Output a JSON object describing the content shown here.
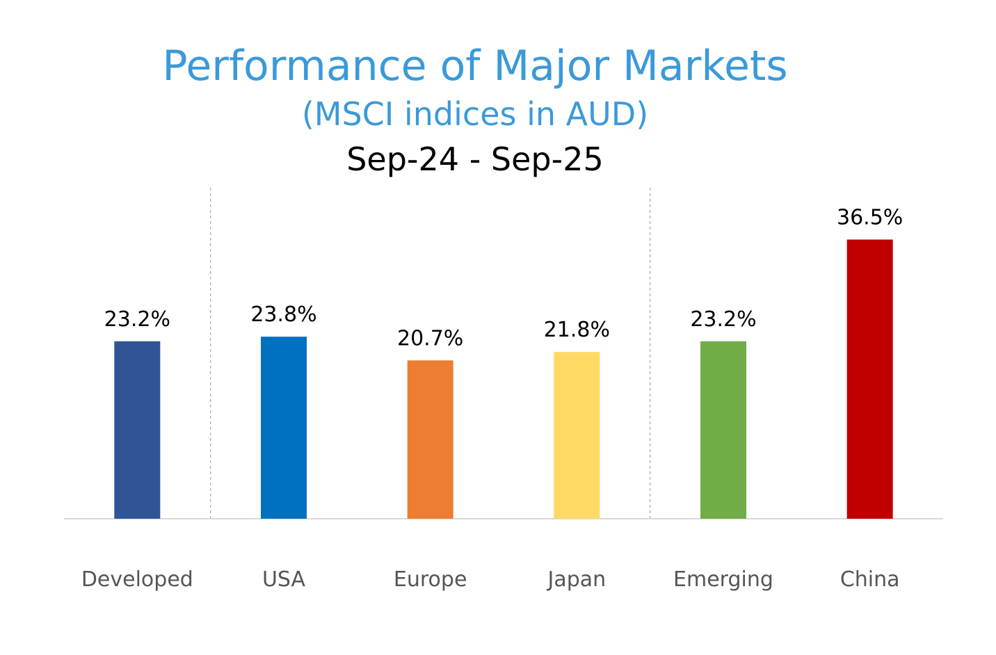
{
  "chart_data": {
    "type": "bar",
    "title": "Performance of Major Markets",
    "subtitle": "(MSCI indices in AUD)",
    "period": "Sep-24 - Sep-25",
    "categories": [
      "Developed",
      "USA",
      "Europe",
      "Japan",
      "Emerging",
      "China"
    ],
    "values": [
      23.2,
      23.8,
      20.7,
      21.8,
      23.2,
      36.5
    ],
    "value_labels": [
      "23.2%",
      "23.8%",
      "20.7%",
      "21.8%",
      "23.2%",
      "36.5%"
    ],
    "colors": [
      "#2F5597",
      "#0070C0",
      "#ED7D31",
      "#FFD966",
      "#70AD47",
      "#C00000"
    ],
    "group_separators_after": [
      "Developed",
      "Japan"
    ],
    "ylim": [
      0,
      40
    ],
    "xlabel": "",
    "ylabel": "",
    "grid": false,
    "legend": "none"
  },
  "style": {
    "title_color": "#3A9AD9",
    "subtitle_color": "#3A9AD9",
    "period_color": "#000000",
    "label_color": "#555555",
    "value_color": "#000000",
    "axis_color": "#D9D9D9",
    "separator_color": "#A6A6A6"
  }
}
